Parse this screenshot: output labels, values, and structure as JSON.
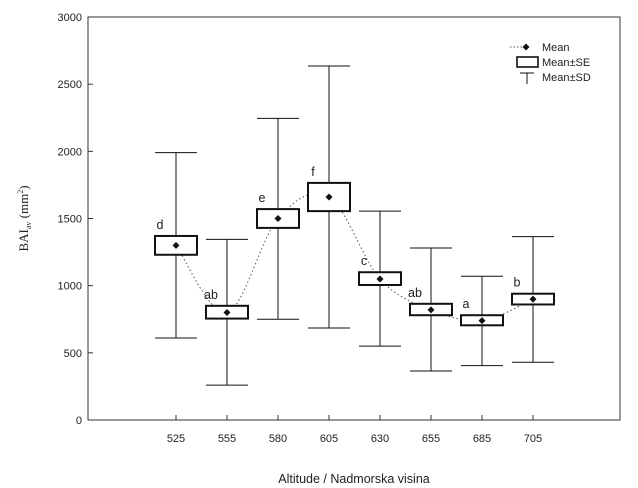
{
  "chart_data": {
    "type": "box",
    "title": "",
    "xlabel": "Altitude / Nadmorska visina",
    "ylabel": {
      "main": "BAI",
      "sub": "av",
      "unit_open": " (mm",
      "unit_sup": "2",
      "unit_close": ")"
    },
    "ylim": [
      0,
      3000
    ],
    "yticks": [
      "0",
      "500",
      "1000",
      "1500",
      "2000",
      "2500",
      "3000"
    ],
    "categories": [
      "525",
      "555",
      "580",
      "605",
      "630",
      "655",
      "685",
      "705"
    ],
    "series": [
      {
        "name": "Mean",
        "values": [
          1300,
          800,
          1500,
          1660,
          1050,
          820,
          740,
          900
        ]
      },
      {
        "name": "Mean±SE",
        "lower": [
          1230,
          755,
          1430,
          1555,
          1005,
          780,
          705,
          860
        ],
        "upper": [
          1370,
          850,
          1570,
          1765,
          1100,
          865,
          780,
          940
        ]
      },
      {
        "name": "Mean±SD",
        "lower": [
          610,
          260,
          750,
          685,
          550,
          365,
          405,
          430
        ],
        "upper": [
          1990,
          1345,
          2245,
          2635,
          1555,
          1280,
          1070,
          1365
        ]
      }
    ],
    "group_letters": [
      "d",
      "ab",
      "e",
      "f",
      "c",
      "ab",
      "a",
      "b"
    ],
    "trend_line": "dotted smooth curve through means",
    "grid": false,
    "legend_position": "top-right"
  },
  "legend": {
    "mean_label": "Mean",
    "se_label": "Mean±SE",
    "sd_label": "Mean±SD"
  }
}
